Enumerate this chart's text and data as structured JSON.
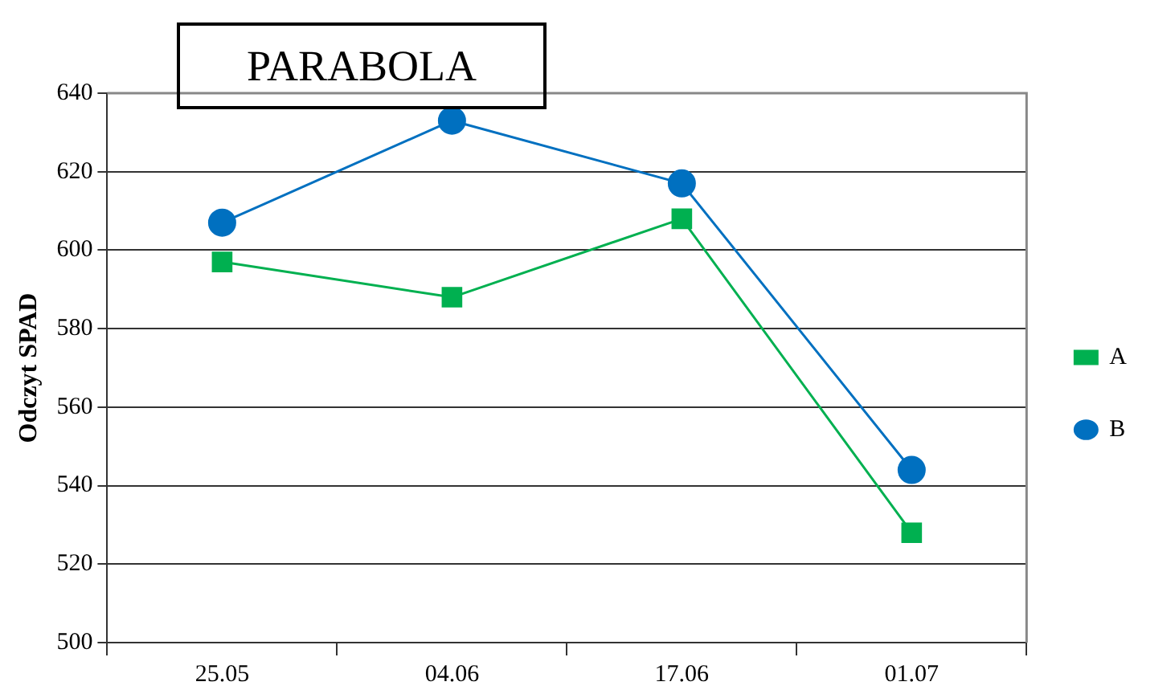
{
  "chart_data": {
    "type": "line",
    "title": "PARABOLA",
    "ylabel": "Odczyt SPAD",
    "categories": [
      "25.05",
      "04.06",
      "17.06",
      "01.07"
    ],
    "series": [
      {
        "name": "A",
        "color": "#00b050",
        "marker": "square",
        "values": [
          597,
          588,
          608,
          528
        ]
      },
      {
        "name": "B",
        "color": "#0070c0",
        "marker": "circle",
        "values": [
          607,
          633,
          617,
          544
        ]
      }
    ],
    "ylim": [
      500,
      640
    ],
    "yticks": [
      500,
      520,
      540,
      560,
      580,
      600,
      620,
      640
    ],
    "grid": "y",
    "legend": "right",
    "line_style": "solid"
  }
}
